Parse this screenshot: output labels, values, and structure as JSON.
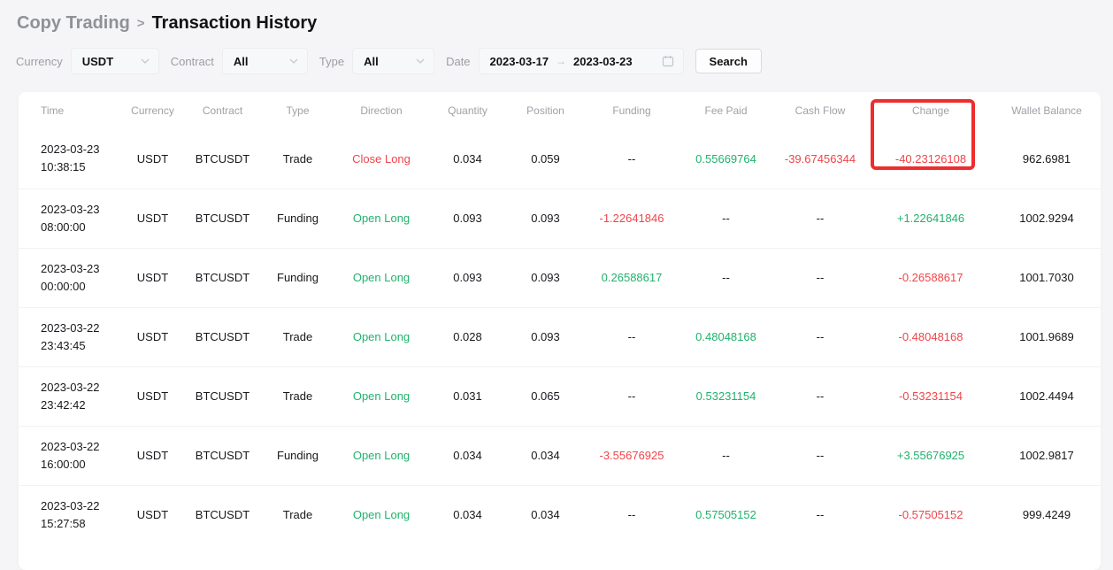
{
  "breadcrumb": {
    "parent": "Copy Trading",
    "separator": ">",
    "current": "Transaction History"
  },
  "filters": {
    "currency_label": "Currency",
    "currency_value": "USDT",
    "contract_label": "Contract",
    "contract_value": "All",
    "type_label": "Type",
    "type_value": "All",
    "date_label": "Date",
    "date_start": "2023-03-17",
    "date_arrow": "→",
    "date_end": "2023-03-23",
    "search_label": "Search"
  },
  "table": {
    "columns": [
      "Time",
      "Currency",
      "Contract",
      "Type",
      "Direction",
      "Quantity",
      "Position",
      "Funding",
      "Fee Paid",
      "Cash Flow",
      "Change",
      "Wallet Balance"
    ],
    "rows": [
      {
        "time": [
          "2023-03-23",
          "10:38:15"
        ],
        "cells": [
          {
            "t": "USDT"
          },
          {
            "t": "BTCUSDT"
          },
          {
            "t": "Trade"
          },
          {
            "t": "Close Long",
            "c": "red"
          },
          {
            "t": "0.034"
          },
          {
            "t": "0.059"
          },
          {
            "t": "--"
          },
          {
            "t": "0.55669764",
            "c": "green"
          },
          {
            "t": "-39.67456344",
            "c": "red"
          },
          {
            "t": "-40.23126108",
            "c": "red"
          },
          {
            "t": "962.6981"
          }
        ]
      },
      {
        "time": [
          "2023-03-23",
          "08:00:00"
        ],
        "cells": [
          {
            "t": "USDT"
          },
          {
            "t": "BTCUSDT"
          },
          {
            "t": "Funding"
          },
          {
            "t": "Open Long",
            "c": "green"
          },
          {
            "t": "0.093"
          },
          {
            "t": "0.093"
          },
          {
            "t": "-1.22641846",
            "c": "red"
          },
          {
            "t": "--"
          },
          {
            "t": "--"
          },
          {
            "t": "+1.22641846",
            "c": "green"
          },
          {
            "t": "1002.9294"
          }
        ]
      },
      {
        "time": [
          "2023-03-23",
          "00:00:00"
        ],
        "cells": [
          {
            "t": "USDT"
          },
          {
            "t": "BTCUSDT"
          },
          {
            "t": "Funding"
          },
          {
            "t": "Open Long",
            "c": "green"
          },
          {
            "t": "0.093"
          },
          {
            "t": "0.093"
          },
          {
            "t": "0.26588617",
            "c": "green"
          },
          {
            "t": "--"
          },
          {
            "t": "--"
          },
          {
            "t": "-0.26588617",
            "c": "red"
          },
          {
            "t": "1001.7030"
          }
        ]
      },
      {
        "time": [
          "2023-03-22",
          "23:43:45"
        ],
        "cells": [
          {
            "t": "USDT"
          },
          {
            "t": "BTCUSDT"
          },
          {
            "t": "Trade"
          },
          {
            "t": "Open Long",
            "c": "green"
          },
          {
            "t": "0.028"
          },
          {
            "t": "0.093"
          },
          {
            "t": "--"
          },
          {
            "t": "0.48048168",
            "c": "green"
          },
          {
            "t": "--"
          },
          {
            "t": "-0.48048168",
            "c": "red"
          },
          {
            "t": "1001.9689"
          }
        ]
      },
      {
        "time": [
          "2023-03-22",
          "23:42:42"
        ],
        "cells": [
          {
            "t": "USDT"
          },
          {
            "t": "BTCUSDT"
          },
          {
            "t": "Trade"
          },
          {
            "t": "Open Long",
            "c": "green"
          },
          {
            "t": "0.031"
          },
          {
            "t": "0.065"
          },
          {
            "t": "--"
          },
          {
            "t": "0.53231154",
            "c": "green"
          },
          {
            "t": "--"
          },
          {
            "t": "-0.53231154",
            "c": "red"
          },
          {
            "t": "1002.4494"
          }
        ]
      },
      {
        "time": [
          "2023-03-22",
          "16:00:00"
        ],
        "cells": [
          {
            "t": "USDT"
          },
          {
            "t": "BTCUSDT"
          },
          {
            "t": "Funding"
          },
          {
            "t": "Open Long",
            "c": "green"
          },
          {
            "t": "0.034"
          },
          {
            "t": "0.034"
          },
          {
            "t": "-3.55676925",
            "c": "red"
          },
          {
            "t": "--"
          },
          {
            "t": "--"
          },
          {
            "t": "+3.55676925",
            "c": "green"
          },
          {
            "t": "1002.9817"
          }
        ]
      },
      {
        "time": [
          "2023-03-22",
          "15:27:58"
        ],
        "cells": [
          {
            "t": "USDT"
          },
          {
            "t": "BTCUSDT"
          },
          {
            "t": "Trade"
          },
          {
            "t": "Open Long",
            "c": "green"
          },
          {
            "t": "0.034"
          },
          {
            "t": "0.034"
          },
          {
            "t": "--"
          },
          {
            "t": "0.57505152",
            "c": "green"
          },
          {
            "t": "--"
          },
          {
            "t": "-0.57505152",
            "c": "red"
          },
          {
            "t": "999.4249"
          }
        ]
      }
    ]
  },
  "annotation": {
    "type": "highlight-box",
    "target_column": "Change",
    "color": "#ee2d2d"
  },
  "colors": {
    "green": "#20b26c",
    "red": "#ef454a"
  }
}
